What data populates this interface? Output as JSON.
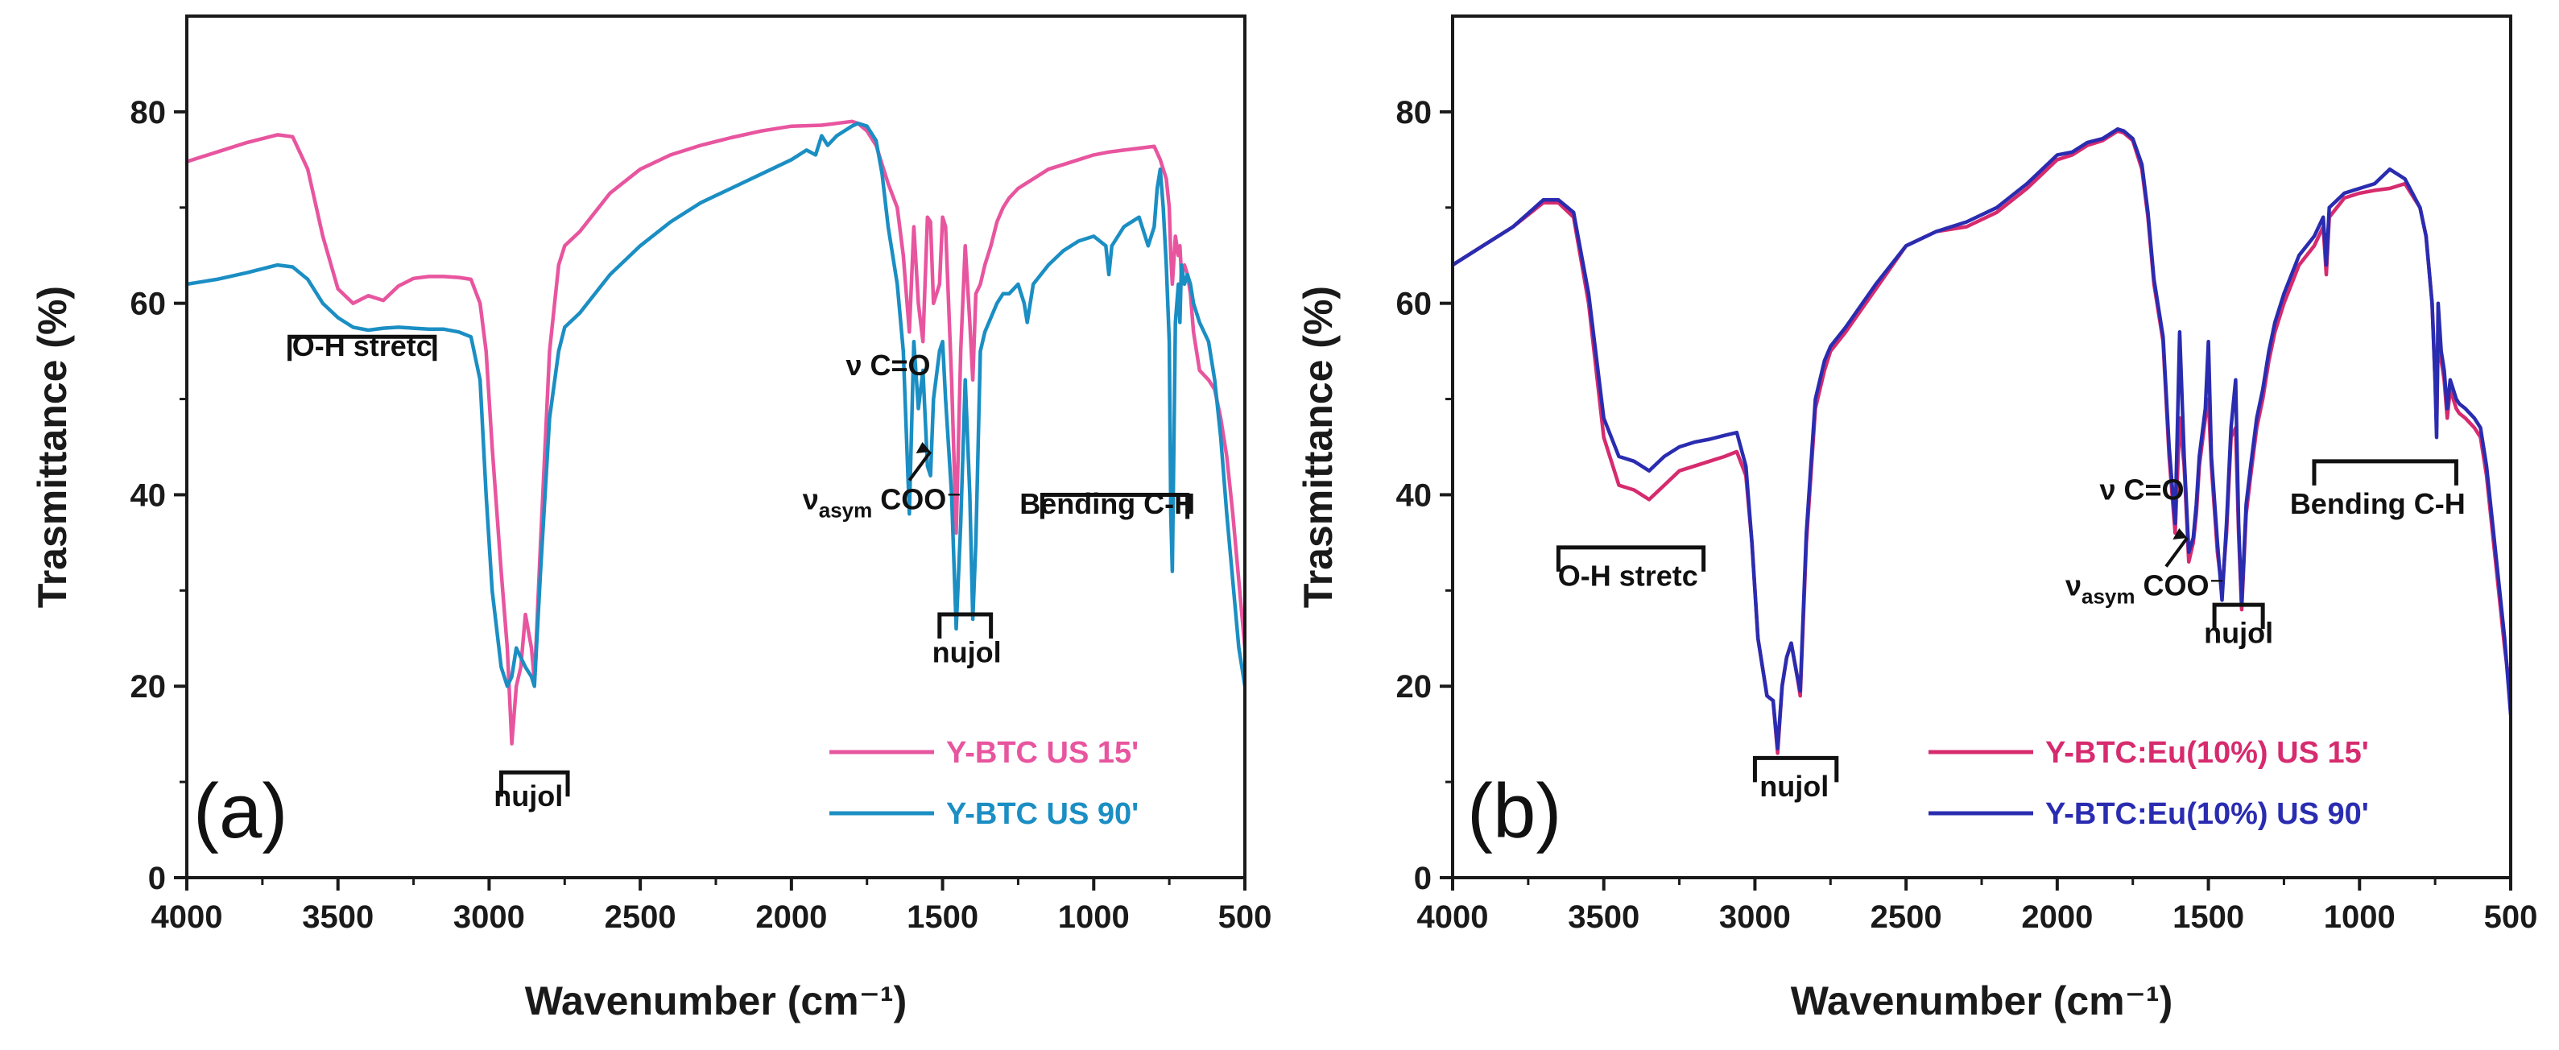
{
  "chart_data": [
    {
      "type": "line",
      "panel_label": "(a)",
      "xlabel": "Wavenumber (cm⁻¹)",
      "ylabel": "Trasmittance (%)",
      "xlim": [
        4000,
        500
      ],
      "ylim": [
        0,
        90
      ],
      "x_ticks": [
        4000,
        3500,
        3000,
        2500,
        2000,
        1500,
        1000,
        500
      ],
      "y_ticks": [
        0,
        20,
        40,
        60,
        80
      ],
      "legend_position": "bottom-right",
      "annotations": [
        {
          "text": "O-H stretc",
          "x": 3420,
          "y": 54.5
        },
        {
          "text": "nujol",
          "x": 2870,
          "y": 7.5
        },
        {
          "text": "ν C=O",
          "x": 1680,
          "y": 52.5
        },
        {
          "text": "νasym COO⁻",
          "x": 1700,
          "y": 38.5
        },
        {
          "text": "nujol",
          "x": 1420,
          "y": 22.5
        },
        {
          "text": "Bending C-H",
          "x": 955,
          "y": 38
        }
      ],
      "series": [
        {
          "name": "Y-BTC US 15'",
          "color": "#e8559f",
          "x": [
            4000,
            3900,
            3800,
            3700,
            3650,
            3600,
            3550,
            3500,
            3450,
            3400,
            3350,
            3300,
            3250,
            3200,
            3150,
            3100,
            3060,
            3030,
            3010,
            2990,
            2960,
            2940,
            2925,
            2910,
            2895,
            2880,
            2860,
            2850,
            2830,
            2800,
            2770,
            2750,
            2700,
            2600,
            2500,
            2400,
            2300,
            2200,
            2100,
            2000,
            1900,
            1850,
            1800,
            1780,
            1750,
            1720,
            1700,
            1680,
            1650,
            1630,
            1610,
            1595,
            1580,
            1565,
            1550,
            1540,
            1530,
            1510,
            1500,
            1490,
            1470,
            1455,
            1440,
            1425,
            1410,
            1400,
            1390,
            1375,
            1360,
            1340,
            1320,
            1300,
            1280,
            1250,
            1200,
            1150,
            1100,
            1050,
            1000,
            950,
            900,
            850,
            800,
            780,
            760,
            750,
            745,
            740,
            730,
            720,
            715,
            710,
            700,
            690,
            680,
            670,
            650,
            620,
            600,
            580,
            560,
            540,
            520,
            500
          ],
          "values": [
            74.8,
            75.8,
            76.8,
            77.6,
            77.4,
            74,
            67,
            61.5,
            60,
            60.8,
            60.3,
            61.8,
            62.6,
            62.8,
            62.8,
            62.7,
            62.5,
            60,
            55,
            45,
            32,
            24,
            14,
            20,
            22,
            27.5,
            24,
            20.5,
            35,
            55,
            64,
            66,
            67.5,
            71.5,
            74,
            75.5,
            76.5,
            77.3,
            78,
            78.5,
            78.6,
            78.8,
            79,
            78.8,
            78,
            76.5,
            74.5,
            72.5,
            70,
            65,
            57,
            68,
            60,
            56,
            69,
            68.5,
            60,
            62,
            69,
            68,
            52,
            36,
            55,
            66,
            58,
            52,
            61,
            62,
            64,
            66,
            68.5,
            70,
            71,
            72,
            73,
            74,
            74.5,
            75,
            75.5,
            75.8,
            76,
            76.2,
            76.4,
            75,
            73,
            70,
            65,
            62,
            67,
            65,
            66,
            63,
            64,
            63,
            61,
            57,
            53,
            52,
            51,
            48,
            44,
            38,
            31,
            24
          ]
        },
        {
          "name": "Y-BTC US 90'",
          "color": "#1b8ec3",
          "x": [
            4000,
            3900,
            3800,
            3700,
            3650,
            3600,
            3550,
            3500,
            3450,
            3400,
            3350,
            3300,
            3250,
            3200,
            3150,
            3100,
            3060,
            3030,
            3010,
            2990,
            2960,
            2940,
            2925,
            2910,
            2895,
            2880,
            2860,
            2850,
            2830,
            2800,
            2770,
            2750,
            2700,
            2600,
            2500,
            2400,
            2300,
            2200,
            2100,
            2000,
            1950,
            1920,
            1900,
            1880,
            1850,
            1800,
            1780,
            1750,
            1720,
            1700,
            1680,
            1650,
            1630,
            1610,
            1595,
            1580,
            1565,
            1550,
            1540,
            1530,
            1510,
            1500,
            1490,
            1470,
            1455,
            1440,
            1425,
            1410,
            1400,
            1390,
            1375,
            1360,
            1340,
            1320,
            1300,
            1280,
            1250,
            1230,
            1220,
            1200,
            1150,
            1100,
            1050,
            1000,
            960,
            950,
            940,
            900,
            850,
            820,
            800,
            790,
            780,
            770,
            760,
            750,
            745,
            740,
            730,
            720,
            715,
            710,
            700,
            690,
            680,
            670,
            650,
            620,
            600,
            580,
            560,
            540,
            520,
            500
          ],
          "values": [
            62,
            62.5,
            63.2,
            64,
            63.8,
            62.5,
            60,
            58.5,
            57.5,
            57.2,
            57.4,
            57.5,
            57.4,
            57.3,
            57.3,
            57,
            56.5,
            52,
            40,
            30,
            22,
            20,
            21,
            24,
            23,
            22,
            21,
            20,
            32,
            48,
            55,
            57.5,
            59,
            63,
            66,
            68.5,
            70.5,
            72,
            73.5,
            75,
            76,
            75.5,
            77.5,
            76.5,
            77.5,
            78.5,
            78.8,
            78.5,
            77,
            73.5,
            68,
            62,
            55,
            38,
            56,
            49,
            53,
            43,
            42,
            50,
            55,
            56,
            50,
            40,
            26,
            37,
            52,
            40,
            27,
            35,
            55,
            57,
            58.5,
            60,
            61,
            61,
            62,
            60,
            58,
            62,
            64,
            65.5,
            66.5,
            67,
            66,
            63,
            66,
            68,
            69,
            66,
            68,
            72,
            74,
            70,
            64,
            56,
            38,
            32,
            58,
            62,
            58,
            64,
            62,
            63,
            62,
            60,
            58,
            56,
            52,
            46,
            38,
            31,
            24,
            20
          ]
        }
      ]
    },
    {
      "type": "line",
      "panel_label": "(b)",
      "xlabel": "Wavenumber (cm⁻¹)",
      "ylabel": "Trasmittance (%)",
      "xlim": [
        4000,
        500
      ],
      "ylim": [
        0,
        90
      ],
      "x_ticks": [
        4000,
        3500,
        3000,
        2500,
        2000,
        1500,
        1000,
        500
      ],
      "y_ticks": [
        0,
        20,
        40,
        60,
        80
      ],
      "legend_position": "bottom-right",
      "annotations": [
        {
          "text": "O-H stretc",
          "x": 3420,
          "y": 30.5
        },
        {
          "text": "nujol",
          "x": 2870,
          "y": 8.5
        },
        {
          "text": "ν C=O",
          "x": 1720,
          "y": 39.5
        },
        {
          "text": "νasym COO⁻",
          "x": 1710,
          "y": 29.5
        },
        {
          "text": "nujol",
          "x": 1400,
          "y": 24.5
        },
        {
          "text": "Bending C-H",
          "x": 940,
          "y": 38
        }
      ],
      "series": [
        {
          "name": "Y-BTC:Eu(10%) US 15'",
          "color": "#d62b6e",
          "x": [
            4000,
            3900,
            3800,
            3700,
            3650,
            3600,
            3550,
            3500,
            3450,
            3400,
            3350,
            3300,
            3250,
            3200,
            3150,
            3100,
            3060,
            3030,
            3010,
            2990,
            2960,
            2940,
            2925,
            2910,
            2895,
            2880,
            2860,
            2850,
            2830,
            2800,
            2770,
            2750,
            2700,
            2600,
            2500,
            2400,
            2300,
            2200,
            2100,
            2000,
            1950,
            1900,
            1850,
            1800,
            1780,
            1750,
            1720,
            1700,
            1680,
            1650,
            1630,
            1610,
            1595,
            1580,
            1565,
            1550,
            1540,
            1530,
            1510,
            1500,
            1490,
            1470,
            1455,
            1440,
            1425,
            1410,
            1400,
            1390,
            1375,
            1360,
            1340,
            1320,
            1300,
            1280,
            1250,
            1200,
            1150,
            1120,
            1110,
            1100,
            1050,
            1000,
            950,
            900,
            850,
            800,
            780,
            760,
            750,
            745,
            740,
            730,
            720,
            715,
            710,
            700,
            690,
            680,
            670,
            650,
            620,
            600,
            580,
            560,
            540,
            520,
            500
          ],
          "values": [
            64,
            66,
            68,
            70.5,
            70.5,
            69,
            60,
            46,
            41,
            40.5,
            39.5,
            41,
            42.5,
            43,
            43.5,
            44,
            44.5,
            42,
            35,
            25,
            19,
            18.5,
            13,
            20,
            23,
            24.5,
            21,
            19,
            35,
            49,
            53,
            55,
            57,
            61.5,
            66,
            67.5,
            68,
            69.5,
            72,
            75,
            75.5,
            76.5,
            77,
            78,
            77.8,
            77,
            74,
            69,
            62,
            56,
            44,
            36,
            48,
            43,
            33,
            35,
            38,
            43,
            48,
            50,
            43,
            34,
            30,
            36,
            46,
            47,
            36,
            28,
            38,
            42,
            47,
            50,
            54,
            57,
            60,
            64,
            66,
            68,
            63,
            69,
            71,
            71.5,
            71.8,
            72,
            72.5,
            70,
            67,
            60,
            52,
            47,
            56,
            54,
            52,
            50,
            48,
            51,
            50,
            49,
            48.5,
            48,
            47,
            46,
            42,
            36,
            30,
            24,
            19
          ]
        },
        {
          "name": "Y-BTC:Eu(10%) US 90'",
          "color": "#2a2cb0",
          "x": [
            4000,
            3900,
            3800,
            3700,
            3650,
            3600,
            3550,
            3500,
            3450,
            3400,
            3350,
            3300,
            3250,
            3200,
            3150,
            3100,
            3060,
            3030,
            3010,
            2990,
            2960,
            2940,
            2925,
            2910,
            2895,
            2880,
            2860,
            2850,
            2830,
            2800,
            2770,
            2750,
            2700,
            2600,
            2500,
            2400,
            2300,
            2200,
            2100,
            2000,
            1950,
            1900,
            1850,
            1800,
            1780,
            1750,
            1720,
            1700,
            1680,
            1650,
            1630,
            1610,
            1595,
            1580,
            1565,
            1550,
            1540,
            1530,
            1510,
            1500,
            1490,
            1470,
            1455,
            1440,
            1425,
            1410,
            1400,
            1390,
            1375,
            1360,
            1340,
            1320,
            1300,
            1280,
            1250,
            1200,
            1150,
            1120,
            1110,
            1100,
            1050,
            1000,
            950,
            900,
            850,
            800,
            780,
            760,
            750,
            745,
            740,
            730,
            720,
            715,
            710,
            700,
            690,
            680,
            670,
            650,
            620,
            600,
            580,
            560,
            540,
            520,
            500
          ],
          "values": [
            64,
            66,
            68,
            70.8,
            70.8,
            69.5,
            61,
            48,
            44,
            43.5,
            42.5,
            44,
            45,
            45.5,
            45.8,
            46.2,
            46.5,
            43,
            35,
            25,
            19,
            18.5,
            13.5,
            20,
            23,
            24.5,
            21,
            19.5,
            36,
            50,
            54,
            55.5,
            57.5,
            62,
            66,
            67.5,
            68.5,
            70,
            72.5,
            75.5,
            75.8,
            76.8,
            77.2,
            78.2,
            78,
            77.2,
            74.5,
            69.5,
            62.5,
            56.5,
            45,
            37,
            57,
            44,
            34,
            35.5,
            39,
            44,
            49,
            56,
            44,
            35,
            29,
            37,
            47,
            52,
            37,
            28.5,
            39,
            43,
            48,
            51,
            55,
            58,
            61,
            65,
            67,
            69,
            64,
            70,
            71.5,
            72,
            72.5,
            74,
            73,
            70,
            67,
            60,
            52,
            46,
            60,
            55,
            53,
            51,
            49,
            52,
            51,
            50,
            49.5,
            49,
            48,
            47,
            43,
            37,
            31,
            25,
            17
          ]
        }
      ]
    }
  ]
}
